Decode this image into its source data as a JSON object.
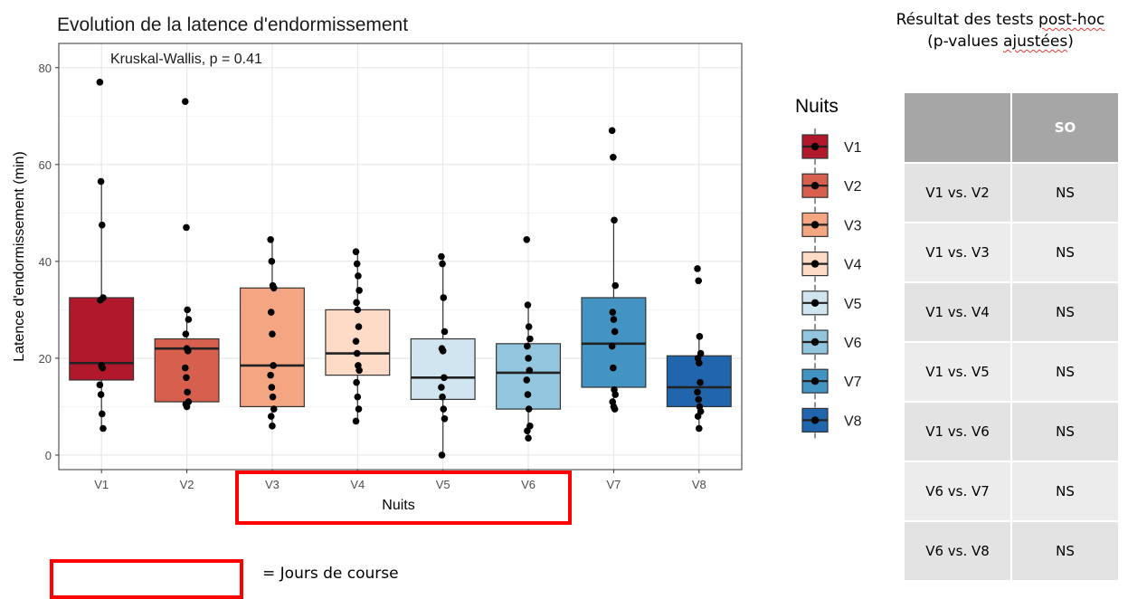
{
  "chart_data": {
    "type": "box",
    "title": "Evolution de la latence d'endormissement",
    "annotation": "Kruskal-Wallis, p = 0.41",
    "xlabel": "Nuits",
    "ylabel": "Latence d'endormissement (min)",
    "ylim": [
      -3,
      85
    ],
    "yticks": [
      0,
      20,
      40,
      60,
      80
    ],
    "categories": [
      "V1",
      "V2",
      "V3",
      "V4",
      "V5",
      "V6",
      "V7",
      "V8"
    ],
    "grid": true,
    "legend": {
      "title": "Nuits",
      "position": "right"
    },
    "series": [
      {
        "name": "V1",
        "color": "#b2182b",
        "q1": 15.5,
        "median": 19,
        "q3": 32.5,
        "whisker_low": 5.5,
        "whisker_high": 56.5,
        "points": [
          77,
          56.5,
          47.5,
          32.5,
          32,
          18.5,
          18,
          14.5,
          12.5,
          8.5,
          5.5
        ]
      },
      {
        "name": "V2",
        "color": "#d6604d",
        "q1": 11,
        "median": 22,
        "q3": 24,
        "whisker_low": 10,
        "whisker_high": 30,
        "points": [
          73,
          47,
          30,
          28,
          25,
          22,
          21.5,
          18,
          16,
          13,
          11,
          10.5,
          10
        ]
      },
      {
        "name": "V3",
        "color": "#f4a582",
        "q1": 10,
        "median": 18.5,
        "q3": 34.5,
        "whisker_low": 5.5,
        "whisker_high": 44.5,
        "points": [
          44.5,
          40,
          35,
          34.5,
          29.5,
          25,
          18.5,
          16.5,
          14,
          12,
          9.5,
          8,
          6
        ]
      },
      {
        "name": "V4",
        "color": "#fddbc7",
        "q1": 16.5,
        "median": 21,
        "q3": 30,
        "whisker_low": 7,
        "whisker_high": 42,
        "points": [
          42,
          39.5,
          37,
          34,
          31.5,
          30,
          26.5,
          23.5,
          21,
          18.5,
          17.5,
          15,
          12,
          9.5,
          7
        ]
      },
      {
        "name": "V5",
        "color": "#d1e5f0",
        "q1": 11.5,
        "median": 16,
        "q3": 24,
        "whisker_low": 0,
        "whisker_high": 41,
        "points": [
          41,
          39.5,
          32.5,
          25.5,
          22,
          21.5,
          16,
          14,
          12,
          9.5,
          7.5,
          0
        ]
      },
      {
        "name": "V6",
        "color": "#92c5de",
        "q1": 9.5,
        "median": 17,
        "q3": 23,
        "whisker_low": 3.5,
        "whisker_high": 31,
        "points": [
          44.5,
          31,
          26.5,
          24,
          22.5,
          20,
          17.5,
          15.5,
          12.5,
          9.5,
          6,
          5,
          3.5
        ]
      },
      {
        "name": "V7",
        "color": "#4393c3",
        "q1": 14,
        "median": 23,
        "q3": 32.5,
        "whisker_low": 9.5,
        "whisker_high": 48.5,
        "points": [
          67,
          61.5,
          48.5,
          35,
          29.5,
          28,
          25.5,
          22.5,
          18,
          13.5,
          12.5,
          11,
          10,
          9.5
        ]
      },
      {
        "name": "V8",
        "color": "#2166ac",
        "q1": 10,
        "median": 14,
        "q3": 20.5,
        "whisker_low": 5.5,
        "whisker_high": 24.5,
        "points": [
          38.5,
          36,
          24.5,
          21,
          20,
          19,
          15,
          13,
          11.5,
          10,
          9,
          8,
          5.5
        ]
      }
    ]
  },
  "table": {
    "title_line1_a": "Résultat des tests ",
    "title_line1_b": "post-hoc",
    "title_line2_a": "(p-values ",
    "title_line2_b": "ajustées",
    "title_line2_c": ")",
    "header": [
      "",
      "SO"
    ],
    "rows": [
      [
        "V1 vs. V2",
        "NS"
      ],
      [
        "V1 vs. V3",
        "NS"
      ],
      [
        "V1 vs. V4",
        "NS"
      ],
      [
        "V1 vs. V5",
        "NS"
      ],
      [
        "V1 vs. V6",
        "NS"
      ],
      [
        "V6 vs. V7",
        "NS"
      ],
      [
        "V6 vs. V8",
        "NS"
      ]
    ]
  },
  "note": "= Jours de course",
  "highlight_color": "#ff0000"
}
